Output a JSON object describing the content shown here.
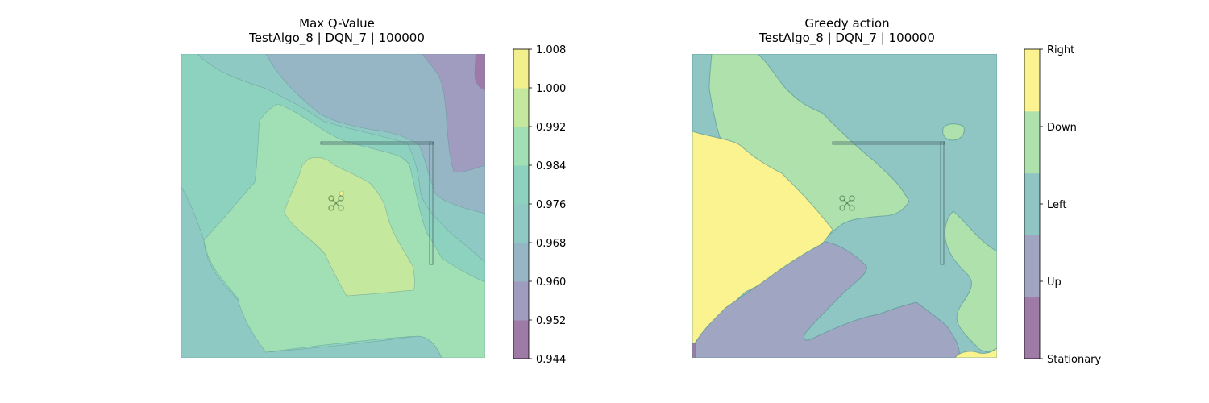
{
  "chart_data": [
    {
      "type": "heatmap",
      "title_line1": "Max Q-Value",
      "title_line2": "TestAlgo_8 | DQN_7 | 100000",
      "xlabel": "",
      "ylabel": "",
      "axes_visible": false,
      "grid": false,
      "colormap": "viridis",
      "alpha": 0.5,
      "colorbar": {
        "levels": [
          0.944,
          0.952,
          0.96,
          0.968,
          0.976,
          0.984,
          0.992,
          1.0,
          1.008
        ],
        "tick_labels": [
          "1.008",
          "1.000",
          "0.992",
          "0.984",
          "0.976",
          "0.968",
          "0.960",
          "0.952",
          "0.944"
        ],
        "colors": [
          "#9e7aa6",
          "#a09cbf",
          "#96b5c5",
          "#8fc9c4",
          "#8cd2bf",
          "#a1dfb5",
          "#c5e89f",
          "#f2f08d"
        ]
      },
      "band_colors": {
        "b952": "#a09cbf",
        "b960": "#96b5c5",
        "b968": "#8fc9c4",
        "b976": "#8cd2bf",
        "b984": "#a1dfb5",
        "b992": "#c5e89f",
        "b1000": "#f2f08d",
        "b944": "#9e7aa6"
      },
      "peak_value_range": [
        0.992,
        1.0
      ]
    },
    {
      "type": "heatmap",
      "title_line1": "Greedy action",
      "title_line2": "TestAlgo_8 | DQN_7 | 100000",
      "xlabel": "",
      "ylabel": "",
      "axes_visible": false,
      "grid": false,
      "colormap": "viridis",
      "alpha": 0.5,
      "categories": [
        "Stationary",
        "Up",
        "Left",
        "Down",
        "Right"
      ],
      "colorbar": {
        "tick_labels": [
          "Right",
          "Down",
          "Left",
          "Up",
          "Stationary"
        ],
        "colors": [
          "#9e7aa6",
          "#a0a6c1",
          "#8fc6c4",
          "#afe1ad",
          "#fbf390"
        ]
      },
      "region_colors": {
        "Stationary": "#9e7aa6",
        "Up": "#a0a6c1",
        "Left": "#8fc6c4",
        "Down": "#afe1ad",
        "Right": "#fbf390"
      }
    }
  ]
}
